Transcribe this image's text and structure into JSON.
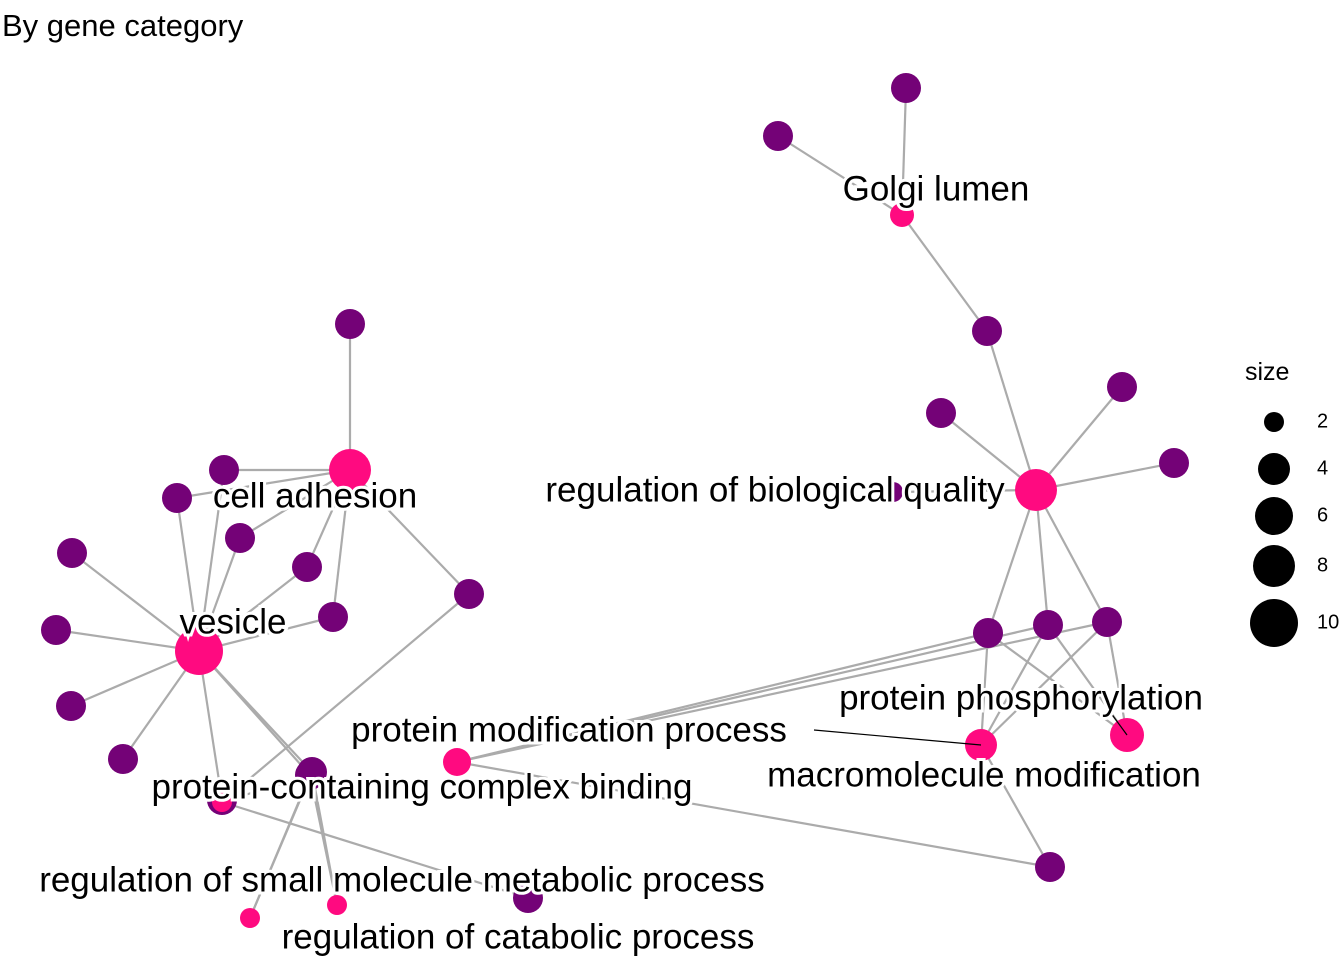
{
  "title": "By gene category",
  "colors": {
    "category": "#ff0a80",
    "gene": "#740277",
    "edge": "#ababab",
    "legend_point": "#000000"
  },
  "network": {
    "nodes": [
      {
        "id": "golgi",
        "type": "category",
        "label": "Golgi lumen"
      },
      {
        "id": "rbq",
        "type": "category",
        "label": "regulation of biological quality"
      },
      {
        "id": "cell_adh",
        "type": "category",
        "label": "cell adhesion"
      },
      {
        "id": "vesicle",
        "type": "category",
        "label": "vesicle"
      },
      {
        "id": "pmp",
        "type": "category",
        "label": "protein modification process"
      },
      {
        "id": "pcb",
        "type": "category",
        "label": "protein-containing complex binding"
      },
      {
        "id": "rsmmp",
        "type": "category",
        "label": "regulation of small molecule metabolic process"
      },
      {
        "id": "rcp",
        "type": "category",
        "label": "regulation of catabolic process"
      },
      {
        "id": "pphos",
        "type": "category",
        "label": "protein phosphorylation"
      },
      {
        "id": "mm",
        "type": "category",
        "label": "macromolecule modification"
      },
      {
        "id": "g1",
        "type": "gene"
      },
      {
        "id": "g2",
        "type": "gene"
      },
      {
        "id": "g3",
        "type": "gene"
      },
      {
        "id": "g4",
        "type": "gene"
      },
      {
        "id": "g5",
        "type": "gene"
      },
      {
        "id": "g6",
        "type": "gene"
      },
      {
        "id": "g7",
        "type": "gene"
      },
      {
        "id": "g8",
        "type": "gene"
      },
      {
        "id": "g9",
        "type": "gene"
      },
      {
        "id": "g10",
        "type": "gene"
      },
      {
        "id": "g11",
        "type": "gene"
      },
      {
        "id": "g12",
        "type": "gene"
      },
      {
        "id": "g13",
        "type": "gene"
      },
      {
        "id": "g14",
        "type": "gene"
      },
      {
        "id": "g15",
        "type": "gene"
      },
      {
        "id": "g16",
        "type": "gene"
      },
      {
        "id": "g17",
        "type": "gene"
      },
      {
        "id": "g18",
        "type": "gene"
      },
      {
        "id": "g19",
        "type": "gene"
      },
      {
        "id": "g20",
        "type": "gene"
      },
      {
        "id": "g21",
        "type": "gene"
      },
      {
        "id": "g22",
        "type": "gene"
      },
      {
        "id": "g23",
        "type": "gene"
      },
      {
        "id": "g24",
        "type": "gene"
      },
      {
        "id": "g25",
        "type": "gene"
      },
      {
        "id": "g26",
        "type": "gene"
      },
      {
        "id": "g27",
        "type": "gene"
      },
      {
        "id": "g28",
        "type": "gene"
      },
      {
        "id": "g29",
        "type": "gene"
      },
      {
        "id": "g30",
        "type": "gene"
      }
    ],
    "edges": [
      [
        "golgi",
        "g1"
      ],
      [
        "golgi",
        "g2"
      ],
      [
        "golgi",
        "g3"
      ],
      [
        "rbq",
        "g3"
      ],
      [
        "rbq",
        "g4"
      ],
      [
        "rbq",
        "g5"
      ],
      [
        "rbq",
        "g6"
      ],
      [
        "rbq",
        "g7"
      ],
      [
        "rbq",
        "g8"
      ],
      [
        "rbq",
        "g9"
      ],
      [
        "rbq",
        "g10"
      ],
      [
        "pphos",
        "g8"
      ],
      [
        "pphos",
        "g9"
      ],
      [
        "pphos",
        "g10"
      ],
      [
        "pmp",
        "g8"
      ],
      [
        "pmp",
        "g9"
      ],
      [
        "pmp",
        "g10"
      ],
      [
        "pmp",
        "g11"
      ],
      [
        "mm",
        "g8"
      ],
      [
        "mm",
        "g9"
      ],
      [
        "mm",
        "g10"
      ],
      [
        "mm",
        "g11"
      ],
      [
        "cell_adh",
        "g12"
      ],
      [
        "cell_adh",
        "g13"
      ],
      [
        "cell_adh",
        "g14"
      ],
      [
        "cell_adh",
        "g15"
      ],
      [
        "cell_adh",
        "g16"
      ],
      [
        "cell_adh",
        "g17"
      ],
      [
        "cell_adh",
        "g26"
      ],
      [
        "vesicle",
        "g13"
      ],
      [
        "vesicle",
        "g14"
      ],
      [
        "vesicle",
        "g15"
      ],
      [
        "vesicle",
        "g16"
      ],
      [
        "vesicle",
        "g17"
      ],
      [
        "vesicle",
        "g18"
      ],
      [
        "vesicle",
        "g19"
      ],
      [
        "vesicle",
        "g20"
      ],
      [
        "vesicle",
        "g21"
      ],
      [
        "vesicle",
        "g22"
      ],
      [
        "vesicle",
        "g23"
      ],
      [
        "vesicle",
        "g24"
      ],
      [
        "pcb",
        "g23"
      ],
      [
        "pcb",
        "g26"
      ],
      [
        "pcb",
        "g27"
      ],
      [
        "rsmmp",
        "g24"
      ],
      [
        "rsmmp",
        "g23"
      ],
      [
        "rcp",
        "g24"
      ],
      [
        "rcp",
        "g23"
      ]
    ]
  },
  "legend": {
    "title": "size",
    "values": [
      "2",
      "4",
      "6",
      "8",
      "10"
    ]
  }
}
